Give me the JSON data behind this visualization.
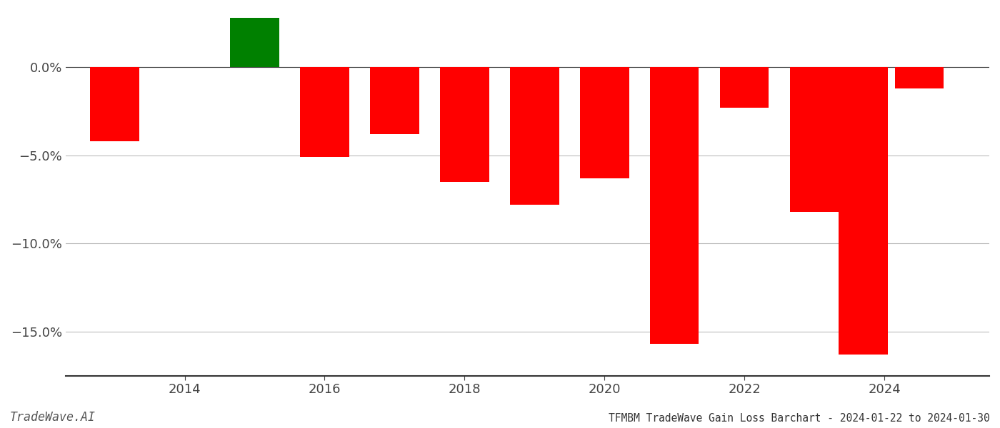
{
  "years": [
    2013,
    2015,
    2016,
    2017,
    2018,
    2019,
    2020,
    2021,
    2022,
    2023,
    2023.7,
    2024.5
  ],
  "values": [
    -4.2,
    2.8,
    -5.1,
    -3.8,
    -6.5,
    -7.8,
    -6.3,
    -15.7,
    -2.3,
    -8.2,
    -16.3,
    -1.2
  ],
  "bar_width": 0.7,
  "xlim": [
    2012.3,
    2025.5
  ],
  "ylim": [
    -17.5,
    3.2
  ],
  "yticks": [
    0.0,
    -5.0,
    -10.0,
    -15.0
  ],
  "ytick_labels": [
    "0.0%",
    "−5.0%",
    "−10.0%",
    "−15.0%"
  ],
  "xticks": [
    2014,
    2016,
    2018,
    2020,
    2022,
    2024
  ],
  "title": "TFMBM TradeWave Gain Loss Barchart - 2024-01-22 to 2024-01-30",
  "watermark": "TradeWave.AI",
  "grid_color": "#bbbbbb",
  "background_color": "#ffffff",
  "bar_color_positive": "#008000",
  "bar_color_negative": "#ff0000"
}
